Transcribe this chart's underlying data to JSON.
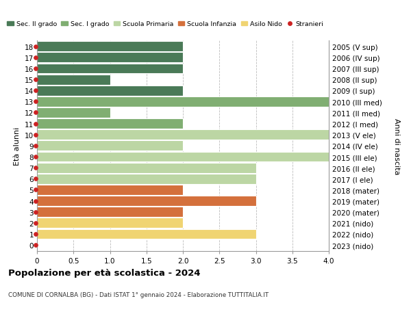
{
  "bars": [
    {
      "age": 18,
      "year_label": "2005 (V sup)",
      "value": 2,
      "color": "#4a7a57"
    },
    {
      "age": 17,
      "year_label": "2006 (IV sup)",
      "value": 2,
      "color": "#4a7a57"
    },
    {
      "age": 16,
      "year_label": "2007 (III sup)",
      "value": 2,
      "color": "#4a7a57"
    },
    {
      "age": 15,
      "year_label": "2008 (II sup)",
      "value": 1,
      "color": "#4a7a57"
    },
    {
      "age": 14,
      "year_label": "2009 (I sup)",
      "value": 2,
      "color": "#4a7a57"
    },
    {
      "age": 13,
      "year_label": "2010 (III med)",
      "value": 4,
      "color": "#80ae72"
    },
    {
      "age": 12,
      "year_label": "2011 (II med)",
      "value": 1,
      "color": "#80ae72"
    },
    {
      "age": 11,
      "year_label": "2012 (I med)",
      "value": 2,
      "color": "#80ae72"
    },
    {
      "age": 10,
      "year_label": "2013 (V ele)",
      "value": 4,
      "color": "#bcd6a4"
    },
    {
      "age": 9,
      "year_label": "2014 (IV ele)",
      "value": 2,
      "color": "#bcd6a4"
    },
    {
      "age": 8,
      "year_label": "2015 (III ele)",
      "value": 4,
      "color": "#bcd6a4"
    },
    {
      "age": 7,
      "year_label": "2016 (II ele)",
      "value": 3,
      "color": "#bcd6a4"
    },
    {
      "age": 6,
      "year_label": "2017 (I ele)",
      "value": 3,
      "color": "#bcd6a4"
    },
    {
      "age": 5,
      "year_label": "2018 (mater)",
      "value": 2,
      "color": "#d4703c"
    },
    {
      "age": 4,
      "year_label": "2019 (mater)",
      "value": 3,
      "color": "#d4703c"
    },
    {
      "age": 3,
      "year_label": "2020 (mater)",
      "value": 2,
      "color": "#d4703c"
    },
    {
      "age": 2,
      "year_label": "2021 (nido)",
      "value": 2,
      "color": "#f0d472"
    },
    {
      "age": 1,
      "year_label": "2022 (nido)",
      "value": 3,
      "color": "#f0d472"
    },
    {
      "age": 0,
      "year_label": "2023 (nido)",
      "value": 0,
      "color": "#f0d472"
    }
  ],
  "legend_items": [
    {
      "label": "Sec. II grado",
      "color": "#4a7a57",
      "type": "patch"
    },
    {
      "label": "Sec. I grado",
      "color": "#80ae72",
      "type": "patch"
    },
    {
      "label": "Scuola Primaria",
      "color": "#bcd6a4",
      "type": "patch"
    },
    {
      "label": "Scuola Infanzia",
      "color": "#d4703c",
      "type": "patch"
    },
    {
      "label": "Asilo Nido",
      "color": "#f0d472",
      "type": "patch"
    },
    {
      "label": "Stranieri",
      "color": "#cc2222",
      "type": "dot"
    }
  ],
  "ylabel_left": "Età alunni",
  "ylabel_right": "Anni di nascita",
  "xlim": [
    0,
    4.0
  ],
  "xticks": [
    0,
    0.5,
    1.0,
    1.5,
    2.0,
    2.5,
    3.0,
    3.5,
    4.0
  ],
  "xticklabels": [
    "0",
    "0.5",
    "1.0",
    "1.5",
    "2.0",
    "2.5",
    "3.0",
    "3.5",
    "4.0"
  ],
  "title": "Popolazione per età scolastica - 2024",
  "subtitle": "COMUNE DI CORNALBA (BG) - Dati ISTAT 1° gennaio 2024 - Elaborazione TUTTITALIA.IT",
  "background_color": "#ffffff",
  "grid_color": "#bbbbbb",
  "bar_height": 0.92,
  "stranieri_dot_color": "#cc2222"
}
